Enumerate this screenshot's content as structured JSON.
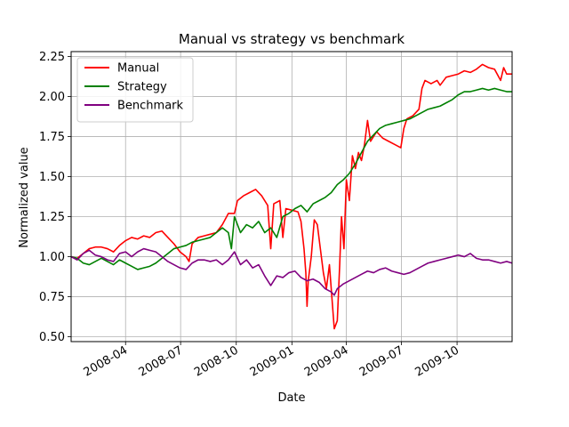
{
  "chart_data": {
    "type": "line",
    "title": "Manual vs strategy vs benchmark",
    "xlabel": "Date",
    "ylabel": "Normalized value",
    "xlim": [
      "2008-01-02",
      "2009-12-31"
    ],
    "ylim": [
      0.47,
      2.28
    ],
    "grid": true,
    "legend_position": "top-left",
    "x_ticks": [
      "2008-04",
      "2008-07",
      "2008-10",
      "2009-01",
      "2009-04",
      "2009-07",
      "2009-10"
    ],
    "y_ticks": [
      "0.50",
      "0.75",
      "1.00",
      "1.25",
      "1.50",
      "1.75",
      "2.00",
      "2.25"
    ],
    "series": [
      {
        "name": "Manual",
        "color": "#ff0000",
        "points": [
          [
            "2008-01-02",
            1.0
          ],
          [
            "2008-01-12",
            0.99
          ],
          [
            "2008-01-22",
            1.02
          ],
          [
            "2008-02-01",
            1.05
          ],
          [
            "2008-02-11",
            1.06
          ],
          [
            "2008-02-21",
            1.06
          ],
          [
            "2008-03-02",
            1.05
          ],
          [
            "2008-03-12",
            1.03
          ],
          [
            "2008-03-22",
            1.07
          ],
          [
            "2008-04-01",
            1.1
          ],
          [
            "2008-04-11",
            1.12
          ],
          [
            "2008-04-21",
            1.11
          ],
          [
            "2008-05-01",
            1.13
          ],
          [
            "2008-05-11",
            1.12
          ],
          [
            "2008-05-21",
            1.15
          ],
          [
            "2008-05-31",
            1.16
          ],
          [
            "2008-06-10",
            1.12
          ],
          [
            "2008-06-20",
            1.08
          ],
          [
            "2008-06-30",
            1.03
          ],
          [
            "2008-07-10",
            1.0
          ],
          [
            "2008-07-15",
            0.97
          ],
          [
            "2008-07-20",
            1.08
          ],
          [
            "2008-07-30",
            1.12
          ],
          [
            "2008-08-09",
            1.13
          ],
          [
            "2008-08-19",
            1.14
          ],
          [
            "2008-08-29",
            1.15
          ],
          [
            "2008-09-08",
            1.2
          ],
          [
            "2008-09-18",
            1.27
          ],
          [
            "2008-09-28",
            1.27
          ],
          [
            "2008-10-03",
            1.35
          ],
          [
            "2008-10-13",
            1.38
          ],
          [
            "2008-10-23",
            1.4
          ],
          [
            "2008-11-02",
            1.42
          ],
          [
            "2008-11-12",
            1.38
          ],
          [
            "2008-11-22",
            1.32
          ],
          [
            "2008-11-27",
            1.05
          ],
          [
            "2008-12-02",
            1.33
          ],
          [
            "2008-12-12",
            1.35
          ],
          [
            "2008-12-17",
            1.12
          ],
          [
            "2008-12-22",
            1.3
          ],
          [
            "2009-01-01",
            1.29
          ],
          [
            "2009-01-11",
            1.28
          ],
          [
            "2009-01-16",
            1.22
          ],
          [
            "2009-01-21",
            1.05
          ],
          [
            "2009-01-24",
            0.9
          ],
          [
            "2009-01-26",
            0.69
          ],
          [
            "2009-01-28",
            0.85
          ],
          [
            "2009-02-02",
            1.0
          ],
          [
            "2009-02-07",
            1.23
          ],
          [
            "2009-02-12",
            1.2
          ],
          [
            "2009-02-17",
            1.05
          ],
          [
            "2009-02-22",
            0.9
          ],
          [
            "2009-02-27",
            0.8
          ],
          [
            "2009-03-04",
            0.95
          ],
          [
            "2009-03-09",
            0.7
          ],
          [
            "2009-03-12",
            0.55
          ],
          [
            "2009-03-17",
            0.6
          ],
          [
            "2009-03-21",
            0.95
          ],
          [
            "2009-03-24",
            1.25
          ],
          [
            "2009-03-28",
            1.05
          ],
          [
            "2009-04-01",
            1.48
          ],
          [
            "2009-04-06",
            1.35
          ],
          [
            "2009-04-11",
            1.63
          ],
          [
            "2009-04-16",
            1.55
          ],
          [
            "2009-04-21",
            1.65
          ],
          [
            "2009-04-26",
            1.6
          ],
          [
            "2009-05-01",
            1.7
          ],
          [
            "2009-05-06",
            1.85
          ],
          [
            "2009-05-11",
            1.72
          ],
          [
            "2009-05-21",
            1.78
          ],
          [
            "2009-05-31",
            1.74
          ],
          [
            "2009-06-10",
            1.72
          ],
          [
            "2009-06-20",
            1.7
          ],
          [
            "2009-06-30",
            1.68
          ],
          [
            "2009-07-05",
            1.8
          ],
          [
            "2009-07-10",
            1.86
          ],
          [
            "2009-07-20",
            1.88
          ],
          [
            "2009-07-30",
            1.92
          ],
          [
            "2009-08-04",
            2.05
          ],
          [
            "2009-08-09",
            2.1
          ],
          [
            "2009-08-19",
            2.08
          ],
          [
            "2009-08-29",
            2.1
          ],
          [
            "2009-09-03",
            2.07
          ],
          [
            "2009-09-13",
            2.12
          ],
          [
            "2009-09-23",
            2.13
          ],
          [
            "2009-10-03",
            2.14
          ],
          [
            "2009-10-13",
            2.16
          ],
          [
            "2009-10-23",
            2.15
          ],
          [
            "2009-11-02",
            2.17
          ],
          [
            "2009-11-12",
            2.2
          ],
          [
            "2009-11-22",
            2.18
          ],
          [
            "2009-12-02",
            2.17
          ],
          [
            "2009-12-12",
            2.1
          ],
          [
            "2009-12-17",
            2.18
          ],
          [
            "2009-12-22",
            2.14
          ],
          [
            "2009-12-31",
            2.14
          ]
        ]
      },
      {
        "name": "Strategy",
        "color": "#008000",
        "points": [
          [
            "2008-01-02",
            1.0
          ],
          [
            "2008-01-12",
            0.99
          ],
          [
            "2008-01-22",
            0.96
          ],
          [
            "2008-02-01",
            0.95
          ],
          [
            "2008-02-11",
            0.97
          ],
          [
            "2008-02-21",
            0.99
          ],
          [
            "2008-03-02",
            0.97
          ],
          [
            "2008-03-12",
            0.95
          ],
          [
            "2008-03-22",
            0.98
          ],
          [
            "2008-04-01",
            0.96
          ],
          [
            "2008-04-11",
            0.94
          ],
          [
            "2008-04-21",
            0.92
          ],
          [
            "2008-05-01",
            0.93
          ],
          [
            "2008-05-11",
            0.94
          ],
          [
            "2008-05-21",
            0.96
          ],
          [
            "2008-05-31",
            0.99
          ],
          [
            "2008-06-10",
            1.02
          ],
          [
            "2008-06-20",
            1.05
          ],
          [
            "2008-06-30",
            1.06
          ],
          [
            "2008-07-10",
            1.07
          ],
          [
            "2008-07-20",
            1.09
          ],
          [
            "2008-07-30",
            1.1
          ],
          [
            "2008-08-09",
            1.11
          ],
          [
            "2008-08-19",
            1.12
          ],
          [
            "2008-08-29",
            1.15
          ],
          [
            "2008-09-08",
            1.18
          ],
          [
            "2008-09-18",
            1.15
          ],
          [
            "2008-09-23",
            1.05
          ],
          [
            "2008-09-28",
            1.25
          ],
          [
            "2008-10-08",
            1.15
          ],
          [
            "2008-10-18",
            1.2
          ],
          [
            "2008-10-28",
            1.18
          ],
          [
            "2008-11-07",
            1.22
          ],
          [
            "2008-11-17",
            1.15
          ],
          [
            "2008-11-27",
            1.18
          ],
          [
            "2008-12-07",
            1.12
          ],
          [
            "2008-12-17",
            1.25
          ],
          [
            "2008-12-27",
            1.27
          ],
          [
            "2009-01-06",
            1.3
          ],
          [
            "2009-01-16",
            1.32
          ],
          [
            "2009-01-26",
            1.28
          ],
          [
            "2009-02-05",
            1.33
          ],
          [
            "2009-02-15",
            1.35
          ],
          [
            "2009-02-25",
            1.37
          ],
          [
            "2009-03-07",
            1.4
          ],
          [
            "2009-03-17",
            1.45
          ],
          [
            "2009-03-27",
            1.48
          ],
          [
            "2009-04-06",
            1.52
          ],
          [
            "2009-04-16",
            1.58
          ],
          [
            "2009-04-26",
            1.65
          ],
          [
            "2009-05-06",
            1.72
          ],
          [
            "2009-05-16",
            1.76
          ],
          [
            "2009-05-26",
            1.8
          ],
          [
            "2009-06-05",
            1.82
          ],
          [
            "2009-06-15",
            1.83
          ],
          [
            "2009-06-25",
            1.84
          ],
          [
            "2009-07-05",
            1.85
          ],
          [
            "2009-07-15",
            1.86
          ],
          [
            "2009-07-25",
            1.88
          ],
          [
            "2009-08-04",
            1.9
          ],
          [
            "2009-08-14",
            1.92
          ],
          [
            "2009-08-24",
            1.93
          ],
          [
            "2009-09-03",
            1.94
          ],
          [
            "2009-09-13",
            1.96
          ],
          [
            "2009-09-23",
            1.98
          ],
          [
            "2009-10-03",
            2.01
          ],
          [
            "2009-10-13",
            2.03
          ],
          [
            "2009-10-23",
            2.03
          ],
          [
            "2009-11-02",
            2.04
          ],
          [
            "2009-11-12",
            2.05
          ],
          [
            "2009-11-22",
            2.04
          ],
          [
            "2009-12-02",
            2.05
          ],
          [
            "2009-12-12",
            2.04
          ],
          [
            "2009-12-22",
            2.03
          ],
          [
            "2009-12-31",
            2.03
          ]
        ]
      },
      {
        "name": "Benchmark",
        "color": "#800080",
        "points": [
          [
            "2008-01-02",
            1.0
          ],
          [
            "2008-01-12",
            0.98
          ],
          [
            "2008-01-22",
            1.02
          ],
          [
            "2008-02-01",
            1.04
          ],
          [
            "2008-02-11",
            1.01
          ],
          [
            "2008-02-21",
            1.0
          ],
          [
            "2008-03-02",
            0.98
          ],
          [
            "2008-03-12",
            0.97
          ],
          [
            "2008-03-22",
            1.02
          ],
          [
            "2008-04-01",
            1.03
          ],
          [
            "2008-04-11",
            1.0
          ],
          [
            "2008-04-21",
            1.03
          ],
          [
            "2008-05-01",
            1.05
          ],
          [
            "2008-05-11",
            1.04
          ],
          [
            "2008-05-21",
            1.03
          ],
          [
            "2008-05-31",
            1.0
          ],
          [
            "2008-06-10",
            0.97
          ],
          [
            "2008-06-20",
            0.95
          ],
          [
            "2008-06-30",
            0.93
          ],
          [
            "2008-07-10",
            0.92
          ],
          [
            "2008-07-20",
            0.96
          ],
          [
            "2008-07-30",
            0.98
          ],
          [
            "2008-08-09",
            0.98
          ],
          [
            "2008-08-19",
            0.97
          ],
          [
            "2008-08-29",
            0.98
          ],
          [
            "2008-09-08",
            0.95
          ],
          [
            "2008-09-18",
            0.98
          ],
          [
            "2008-09-28",
            1.03
          ],
          [
            "2008-10-08",
            0.95
          ],
          [
            "2008-10-18",
            0.98
          ],
          [
            "2008-10-28",
            0.93
          ],
          [
            "2008-11-07",
            0.95
          ],
          [
            "2008-11-17",
            0.88
          ],
          [
            "2008-11-27",
            0.82
          ],
          [
            "2008-12-07",
            0.88
          ],
          [
            "2008-12-17",
            0.87
          ],
          [
            "2008-12-27",
            0.9
          ],
          [
            "2009-01-06",
            0.91
          ],
          [
            "2009-01-16",
            0.87
          ],
          [
            "2009-01-26",
            0.85
          ],
          [
            "2009-02-05",
            0.86
          ],
          [
            "2009-02-15",
            0.84
          ],
          [
            "2009-02-25",
            0.8
          ],
          [
            "2009-03-07",
            0.78
          ],
          [
            "2009-03-12",
            0.76
          ],
          [
            "2009-03-17",
            0.8
          ],
          [
            "2009-03-27",
            0.83
          ],
          [
            "2009-04-06",
            0.85
          ],
          [
            "2009-04-16",
            0.87
          ],
          [
            "2009-04-26",
            0.89
          ],
          [
            "2009-05-06",
            0.91
          ],
          [
            "2009-05-16",
            0.9
          ],
          [
            "2009-05-26",
            0.92
          ],
          [
            "2009-06-05",
            0.93
          ],
          [
            "2009-06-15",
            0.91
          ],
          [
            "2009-06-25",
            0.9
          ],
          [
            "2009-07-05",
            0.89
          ],
          [
            "2009-07-15",
            0.9
          ],
          [
            "2009-07-25",
            0.92
          ],
          [
            "2009-08-04",
            0.94
          ],
          [
            "2009-08-14",
            0.96
          ],
          [
            "2009-08-24",
            0.97
          ],
          [
            "2009-09-03",
            0.98
          ],
          [
            "2009-09-13",
            0.99
          ],
          [
            "2009-09-23",
            1.0
          ],
          [
            "2009-10-03",
            1.01
          ],
          [
            "2009-10-13",
            1.0
          ],
          [
            "2009-10-23",
            1.02
          ],
          [
            "2009-11-02",
            0.99
          ],
          [
            "2009-11-12",
            0.98
          ],
          [
            "2009-11-22",
            0.98
          ],
          [
            "2009-12-02",
            0.97
          ],
          [
            "2009-12-12",
            0.96
          ],
          [
            "2009-12-22",
            0.97
          ],
          [
            "2009-12-31",
            0.96
          ]
        ]
      }
    ]
  }
}
